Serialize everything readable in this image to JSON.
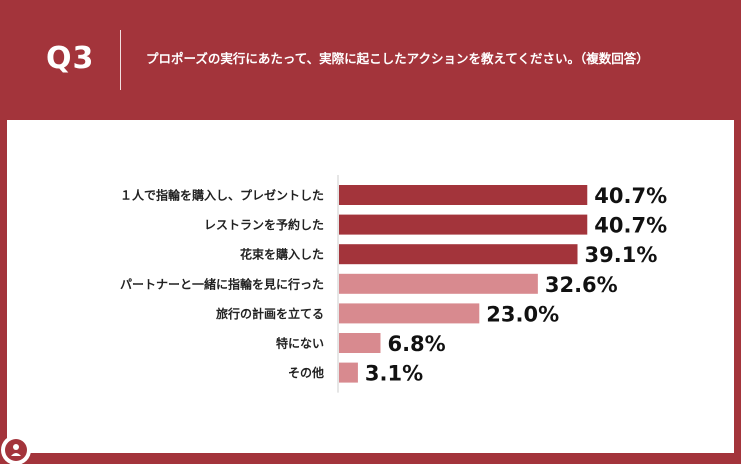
{
  "header": {
    "q_label": "Q3",
    "question": "プロポーズの実行にあたって、実際に起こしたアクションを教えてください。（複数回答）"
  },
  "colors": {
    "background": "#a3343b",
    "panel": "#ffffff",
    "bar_dark": "#a3343b",
    "bar_light": "#d88a8f",
    "axis": "#cccccc",
    "text": "#222222"
  },
  "chart_data": {
    "type": "bar",
    "orientation": "horizontal",
    "categories": [
      "１人で指輪を購入し、プレゼントした",
      "レストランを予約した",
      "花束を購入した",
      "パートナーと一緒に指輪を見に行った",
      "旅行の計画を立てる",
      "特にない",
      "その他"
    ],
    "values": [
      40.7,
      40.7,
      39.1,
      32.6,
      23.0,
      6.8,
      3.1
    ],
    "value_labels": [
      "40.7%",
      "40.7%",
      "39.1%",
      "32.6%",
      "23.0%",
      "6.8%",
      "3.1%"
    ],
    "bar_colors": [
      "#a3343b",
      "#a3343b",
      "#a3343b",
      "#d88a8f",
      "#d88a8f",
      "#d88a8f",
      "#d88a8f"
    ],
    "xlim": [
      0,
      100
    ],
    "grid": false
  }
}
